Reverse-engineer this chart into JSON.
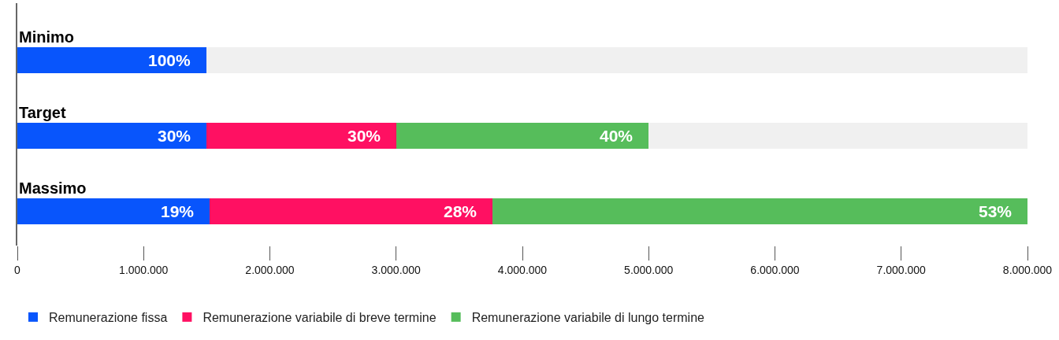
{
  "chart_data": {
    "type": "bar",
    "orientation": "horizontal",
    "stacked": true,
    "categories": [
      "Minimo",
      "Target",
      "Massimo"
    ],
    "series": [
      {
        "name": "Remunerazione fissa",
        "color": "#0855fc",
        "values": [
          1500000,
          1500000,
          1520000
        ]
      },
      {
        "name": "Remunerazione variabile di breve termine",
        "color": "#ff1062",
        "values": [
          null,
          1500000,
          2240000
        ]
      },
      {
        "name": "Remunerazione variabile di lungo termine",
        "color": "#56bd5b",
        "values": [
          null,
          2000000,
          4240000
        ]
      },
      {
        "color": "#f0f0f0",
        "values": [
          6500000,
          3000000,
          null
        ]
      }
    ],
    "annotations": [
      {
        "text": "100%",
        "x": 1500000,
        "y": "Minimo"
      },
      {
        "text": "30%",
        "x": 1500000,
        "y": "Target"
      },
      {
        "text": "30%",
        "x": 3000000,
        "y": "Target"
      },
      {
        "text": "40%",
        "x": 5000000,
        "y": "Target"
      },
      {
        "text": "19%",
        "x": 1520000,
        "y": "Massimo"
      },
      {
        "text": "28%",
        "x": 3760000,
        "y": "Massimo"
      },
      {
        "text": "53%",
        "x": 8000000,
        "y": "Massimo"
      }
    ],
    "xlim": [
      0,
      8000000
    ],
    "xticks": [
      0,
      {
        "value": 1000000,
        "label": "1.000.000"
      },
      {
        "value": 2000000,
        "label": "2.000.000"
      },
      {
        "value": 3000000,
        "label": "3.000.000"
      },
      {
        "value": 4000000,
        "label": "4.000.000"
      },
      {
        "value": 5000000,
        "label": "5.000.000"
      },
      {
        "value": 6000000,
        "label": "6.000.000"
      },
      {
        "value": 7000000,
        "label": "7.000.000"
      },
      {
        "value": 8000000,
        "label": "8.000.000"
      }
    ],
    "tick_labels": "x",
    "legend": "bottom left"
  }
}
